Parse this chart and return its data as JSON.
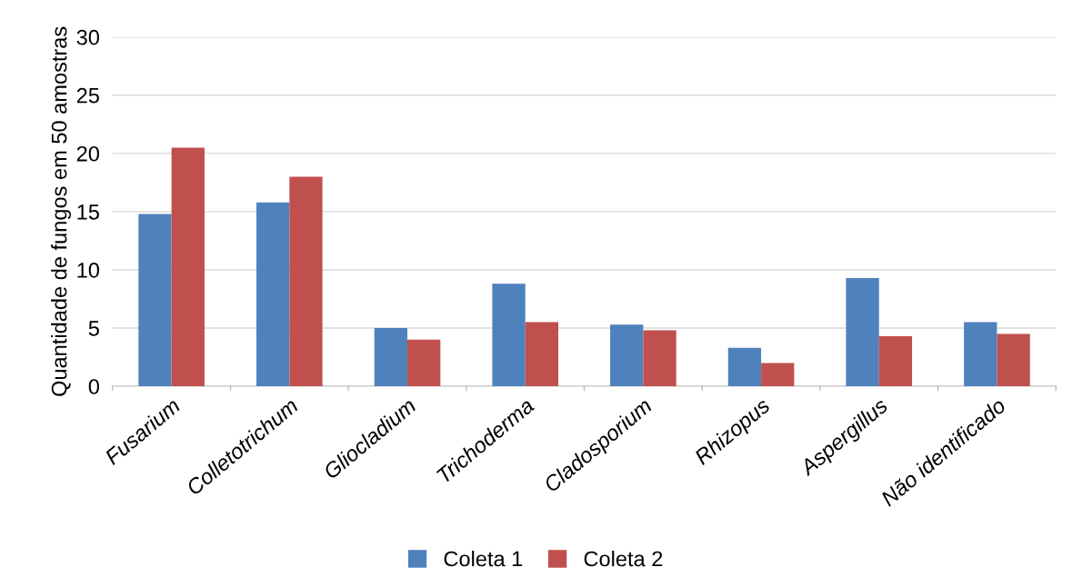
{
  "chart_data": {
    "type": "bar",
    "ylabel": "Quantidade de fungos em 50 amostras",
    "categories": [
      "Fusarium",
      "Colletotrichum",
      "Gliocladium",
      "Trichoderma",
      "Cladosporium",
      "Rhizopus",
      "Aspergillus",
      "Não identificado"
    ],
    "series": [
      {
        "name": "Coleta 1",
        "color": "#4f81bd",
        "values": [
          14.8,
          15.8,
          5.0,
          8.8,
          5.3,
          3.3,
          9.3,
          5.5
        ]
      },
      {
        "name": "Coleta 2",
        "color": "#c0504d",
        "values": [
          20.5,
          18.0,
          4.0,
          5.5,
          4.8,
          2.0,
          4.3,
          4.5
        ]
      }
    ],
    "ylim": [
      0,
      30
    ],
    "yticks": [
      0,
      5,
      10,
      15,
      20,
      25,
      30
    ],
    "grid": "y",
    "legend": "bottom"
  }
}
